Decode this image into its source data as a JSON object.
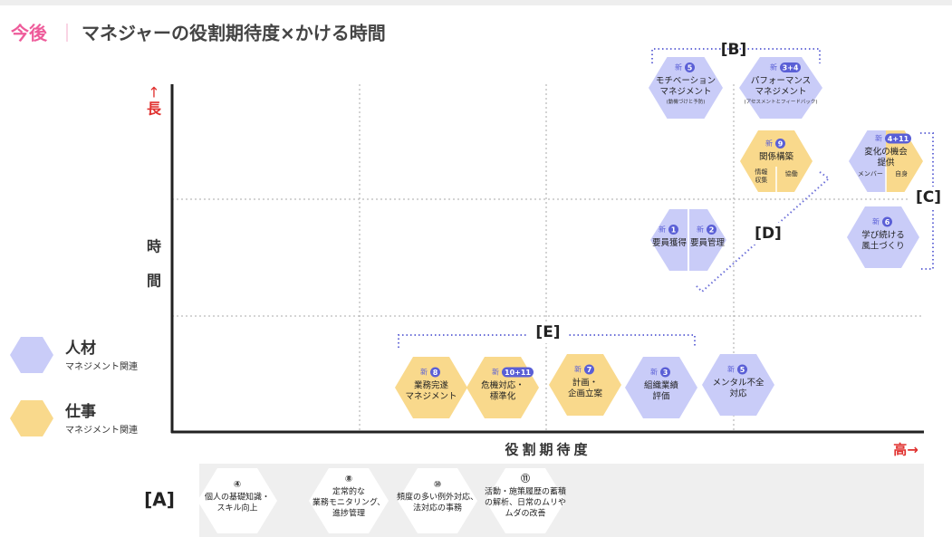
{
  "title": {
    "prefix": "今後",
    "separator": "｜",
    "text": "マネジャーの役割期待度×かける時間"
  },
  "axes": {
    "y_arrow": "↑",
    "y_high": "長",
    "y_label": [
      "時",
      "間"
    ],
    "x_label": "役割期待度",
    "x_high": "高→"
  },
  "legend": [
    {
      "title": "人材",
      "subtitle": "マネジメント関連",
      "color": "#c9ccf8"
    },
    {
      "title": "仕事",
      "subtitle": "マネジメント関連",
      "color": "#f9d98c"
    }
  ],
  "groups": {
    "B": "[B]",
    "C": "[C]",
    "D": "[D]",
    "E": "[E]"
  },
  "nodes": [
    {
      "fill": [
        "#c9ccf8"
      ],
      "parts": [
        {
          "badge": "新",
          "number": "5",
          "lines": [
            "モチベーション",
            "マネジメント"
          ],
          "note": "(動機づけと予防)"
        }
      ]
    },
    {
      "fill": [
        "#c9ccf8"
      ],
      "parts": [
        {
          "badge": "新",
          "number": "3+4",
          "lines": [
            "パフォーマンス",
            "マネジメント"
          ],
          "note": "(アセスメントとフィードバック)"
        }
      ]
    },
    {
      "fill": [
        "#f9d98c"
      ],
      "parts": [
        {
          "badge": "新",
          "number": "9",
          "lines": [
            "関係構築"
          ]
        }
      ],
      "sublabels": [
        [
          "情報",
          "収集"
        ],
        [
          "協働"
        ]
      ]
    },
    {
      "fill": [
        "#c9ccf8",
        "#f9d98c"
      ],
      "parts": [
        {
          "badge": "新",
          "number": "4+11",
          "lines": [
            "変化の機会",
            "提供"
          ]
        }
      ],
      "sublabels": [
        [
          "メンバー"
        ],
        [
          "自身"
        ]
      ]
    },
    {
      "fill": [
        "#c9ccf8"
      ],
      "parts": [
        {
          "badge": "新",
          "number": "1",
          "lines": [
            "要員獲得"
          ]
        },
        {
          "badge": "新",
          "number": "2",
          "lines": [
            "要員管理"
          ]
        }
      ]
    },
    {
      "fill": [
        "#c9ccf8"
      ],
      "parts": [
        {
          "badge": "新",
          "number": "6",
          "lines": [
            "学び続ける",
            "風土づくり"
          ]
        }
      ]
    },
    {
      "fill": [
        "#f9d98c"
      ],
      "parts": [
        {
          "badge": "新",
          "number": "8",
          "lines": [
            "業務完遂",
            "マネジメント"
          ]
        }
      ]
    },
    {
      "fill": [
        "#f9d98c"
      ],
      "parts": [
        {
          "badge": "新",
          "number": "10+11",
          "lines": [
            "危機対応・",
            "標準化"
          ]
        }
      ]
    },
    {
      "fill": [
        "#f9d98c"
      ],
      "parts": [
        {
          "badge": "新",
          "number": "7",
          "lines": [
            "計画・",
            "企画立案"
          ]
        }
      ]
    },
    {
      "fill": [
        "#c9ccf8"
      ],
      "parts": [
        {
          "badge": "新",
          "number": "3",
          "lines": [
            "組織業績",
            "評価"
          ]
        }
      ]
    },
    {
      "fill": [
        "#c9ccf8"
      ],
      "parts": [
        {
          "badge": "新",
          "number": "5",
          "lines": [
            "メンタル不全",
            "対応"
          ]
        }
      ]
    }
  ],
  "section_a": {
    "label": "[A]",
    "items": [
      {
        "number": "④",
        "lines": [
          "個人の基礎知識・",
          "スキル向上"
        ]
      },
      {
        "number": "⑧",
        "lines": [
          "定常的な",
          "業務モニタリング、",
          "進捗管理"
        ]
      },
      {
        "number": "⑩",
        "lines": [
          "頻度の多い例外対応、",
          "法対応の事務"
        ]
      },
      {
        "number": "⑪",
        "lines": [
          "活動・施策履歴の蓄積",
          "の解析、日常のムリや",
          "ムダの改善"
        ]
      }
    ]
  }
}
